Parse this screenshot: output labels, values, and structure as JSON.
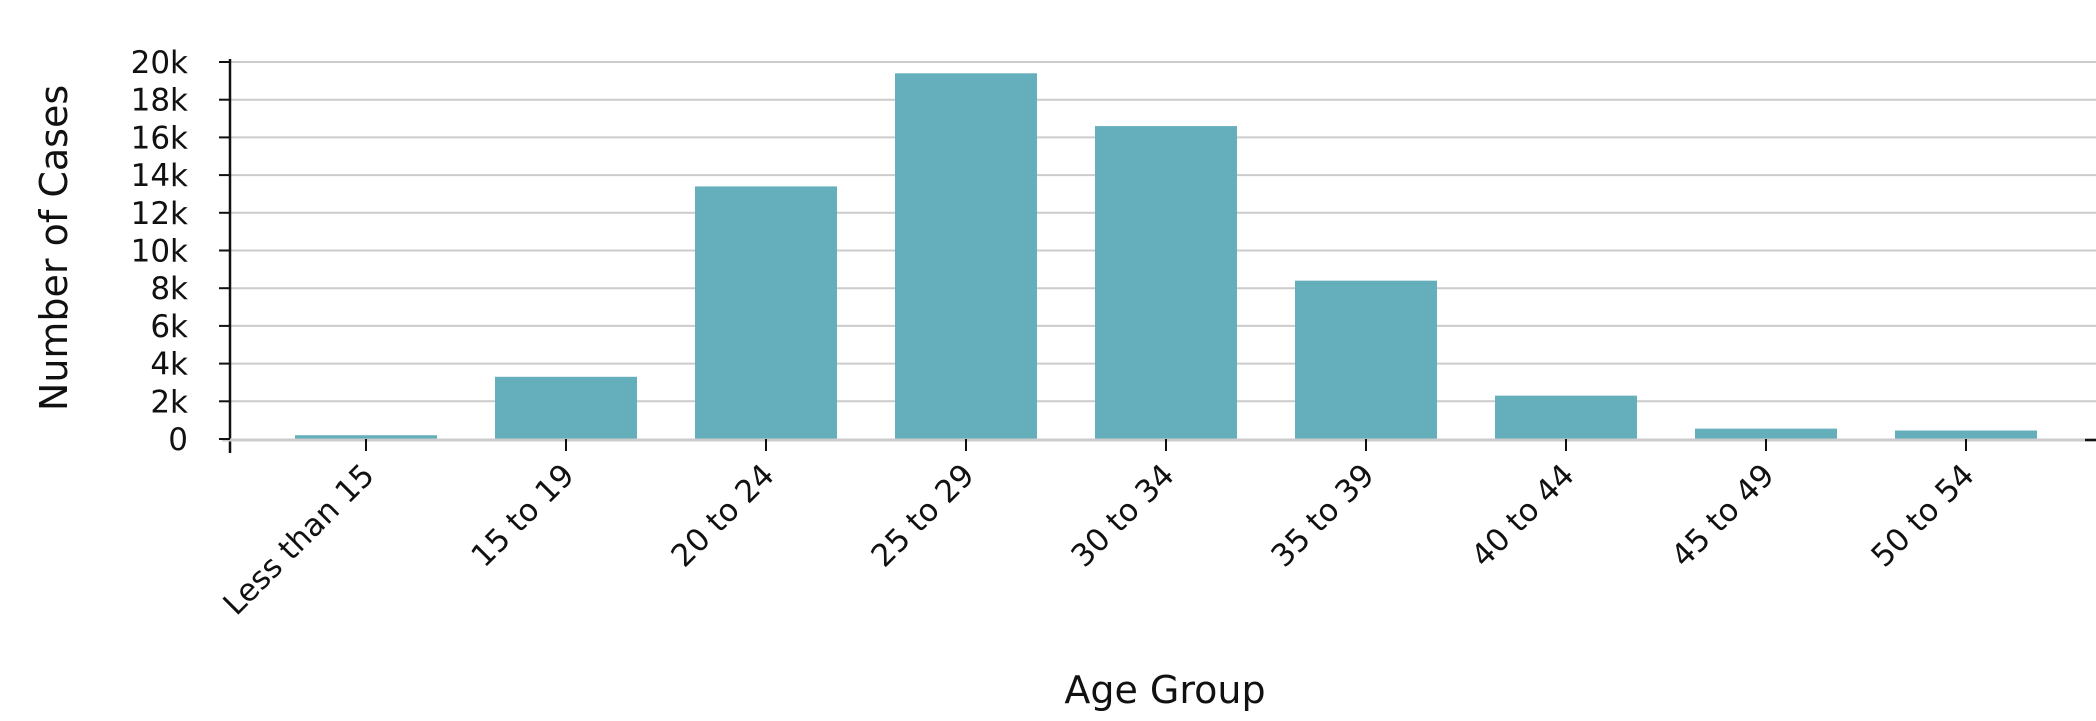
{
  "chart_data": {
    "type": "bar",
    "title": "",
    "xlabel": "Age Group",
    "ylabel": "Number of Cases",
    "categories": [
      "Less than 15",
      "15 to 19",
      "20 to 24",
      "25 to 29",
      "30 to 34",
      "35 to 39",
      "40 to 44",
      "45 to 49",
      "50 to 54"
    ],
    "values": [
      200,
      3300,
      13400,
      19400,
      16600,
      8400,
      2300,
      550,
      450
    ],
    "ylim": [
      0,
      20000
    ],
    "yticks": [
      0,
      2000,
      4000,
      6000,
      8000,
      10000,
      12000,
      14000,
      16000,
      18000,
      20000
    ],
    "ytick_labels": [
      "0",
      "2k",
      "4k",
      "6k",
      "8k",
      "10k",
      "12k",
      "14k",
      "16k",
      "18k",
      "20k"
    ],
    "grid": "horizontal",
    "legend": "none",
    "colors": {
      "bar": "#64afbb",
      "grid": "#cccccc",
      "axis": "#111111"
    }
  }
}
